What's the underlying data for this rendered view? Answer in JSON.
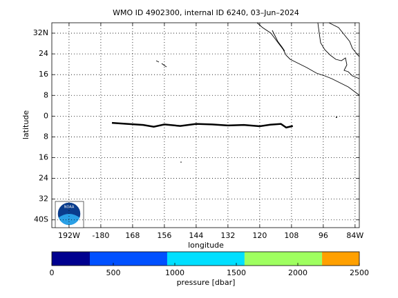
{
  "chart_data": {
    "type": "map",
    "title": "WMO ID 4902300, internal ID 6240, 03–Jun–2024",
    "x_label": "longitude",
    "y_label": "latitude",
    "xlim": [
      -198.5,
      -82.4
    ],
    "ylim": [
      -43,
      36
    ],
    "xticks": [
      {
        "value": -192,
        "label": "192W"
      },
      -180,
      {
        "value": -168,
        "label": "168"
      },
      {
        "value": -156,
        "label": "156"
      },
      {
        "value": -144,
        "label": "144"
      },
      {
        "value": -132,
        "label": "132"
      },
      {
        "value": -120,
        "label": "120"
      },
      {
        "value": -108,
        "label": "108"
      },
      {
        "value": -96,
        "label": "96"
      },
      {
        "value": -84,
        "label": "84W"
      }
    ],
    "yticks": [
      {
        "value": 32,
        "label": "32N"
      },
      24,
      16,
      8,
      0,
      {
        "value": -8,
        "label": "8"
      },
      {
        "value": -16,
        "label": "16"
      },
      {
        "value": -24,
        "label": "24"
      },
      {
        "value": -32,
        "label": "32"
      },
      {
        "value": -40,
        "label": "40S"
      }
    ],
    "grid": true,
    "track": {
      "color": "#000000",
      "lon": [
        -175.8,
        -170,
        -164,
        -160,
        -156,
        -150,
        -144,
        -138,
        -132,
        -126,
        -120,
        -116,
        -112,
        -110,
        -107.5
      ],
      "lat": [
        -2.6,
        -3.0,
        -3.4,
        -4.1,
        -3.2,
        -3.8,
        -3.0,
        -3.2,
        -3.6,
        -3.4,
        -3.9,
        -3.3,
        -3.0,
        -4.4,
        -3.8
      ]
    },
    "logo": "NOAA",
    "colorbar": {
      "label": "pressure [dbar]",
      "lim": [
        0,
        2500
      ],
      "ticks": [
        0,
        500,
        1000,
        1500,
        2000,
        2500
      ],
      "levels": [
        0,
        309,
        938,
        1567,
        2197,
        2500
      ],
      "colors": [
        "#00008f",
        "#0050ff",
        "#00dfff",
        "#9fff60",
        "#ffa000"
      ]
    }
  }
}
